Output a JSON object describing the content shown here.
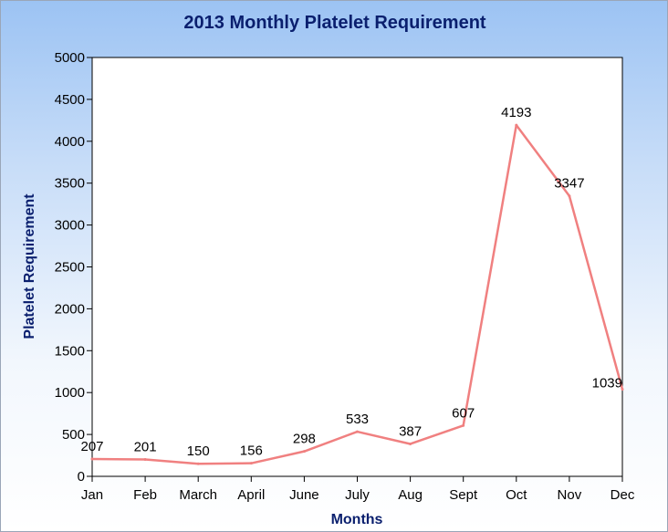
{
  "chart_data": {
    "type": "line",
    "title": "2013 Monthly Platelet Requirement",
    "xlabel": "Months",
    "ylabel": "Platelet Requirement",
    "categories": [
      "Jan",
      "Feb",
      "March",
      "April",
      "June",
      "July",
      "Aug",
      "Sept",
      "Oct",
      "Nov",
      "Dec"
    ],
    "series": [
      {
        "values": [
          207,
          201,
          150,
          156,
          298,
          533,
          387,
          607,
          4193,
          3347,
          1039
        ],
        "color": "#f08080"
      }
    ],
    "data_labels": [
      "207",
      "201",
      "150",
      "156",
      "298",
      "533",
      "387",
      "607",
      "4193",
      "3347",
      "1039"
    ],
    "ylim": [
      0,
      5000
    ],
    "yticks": [
      0,
      500,
      1000,
      1500,
      2000,
      2500,
      3000,
      3500,
      4000,
      4500,
      5000
    ],
    "grid": false,
    "legend": "none"
  }
}
